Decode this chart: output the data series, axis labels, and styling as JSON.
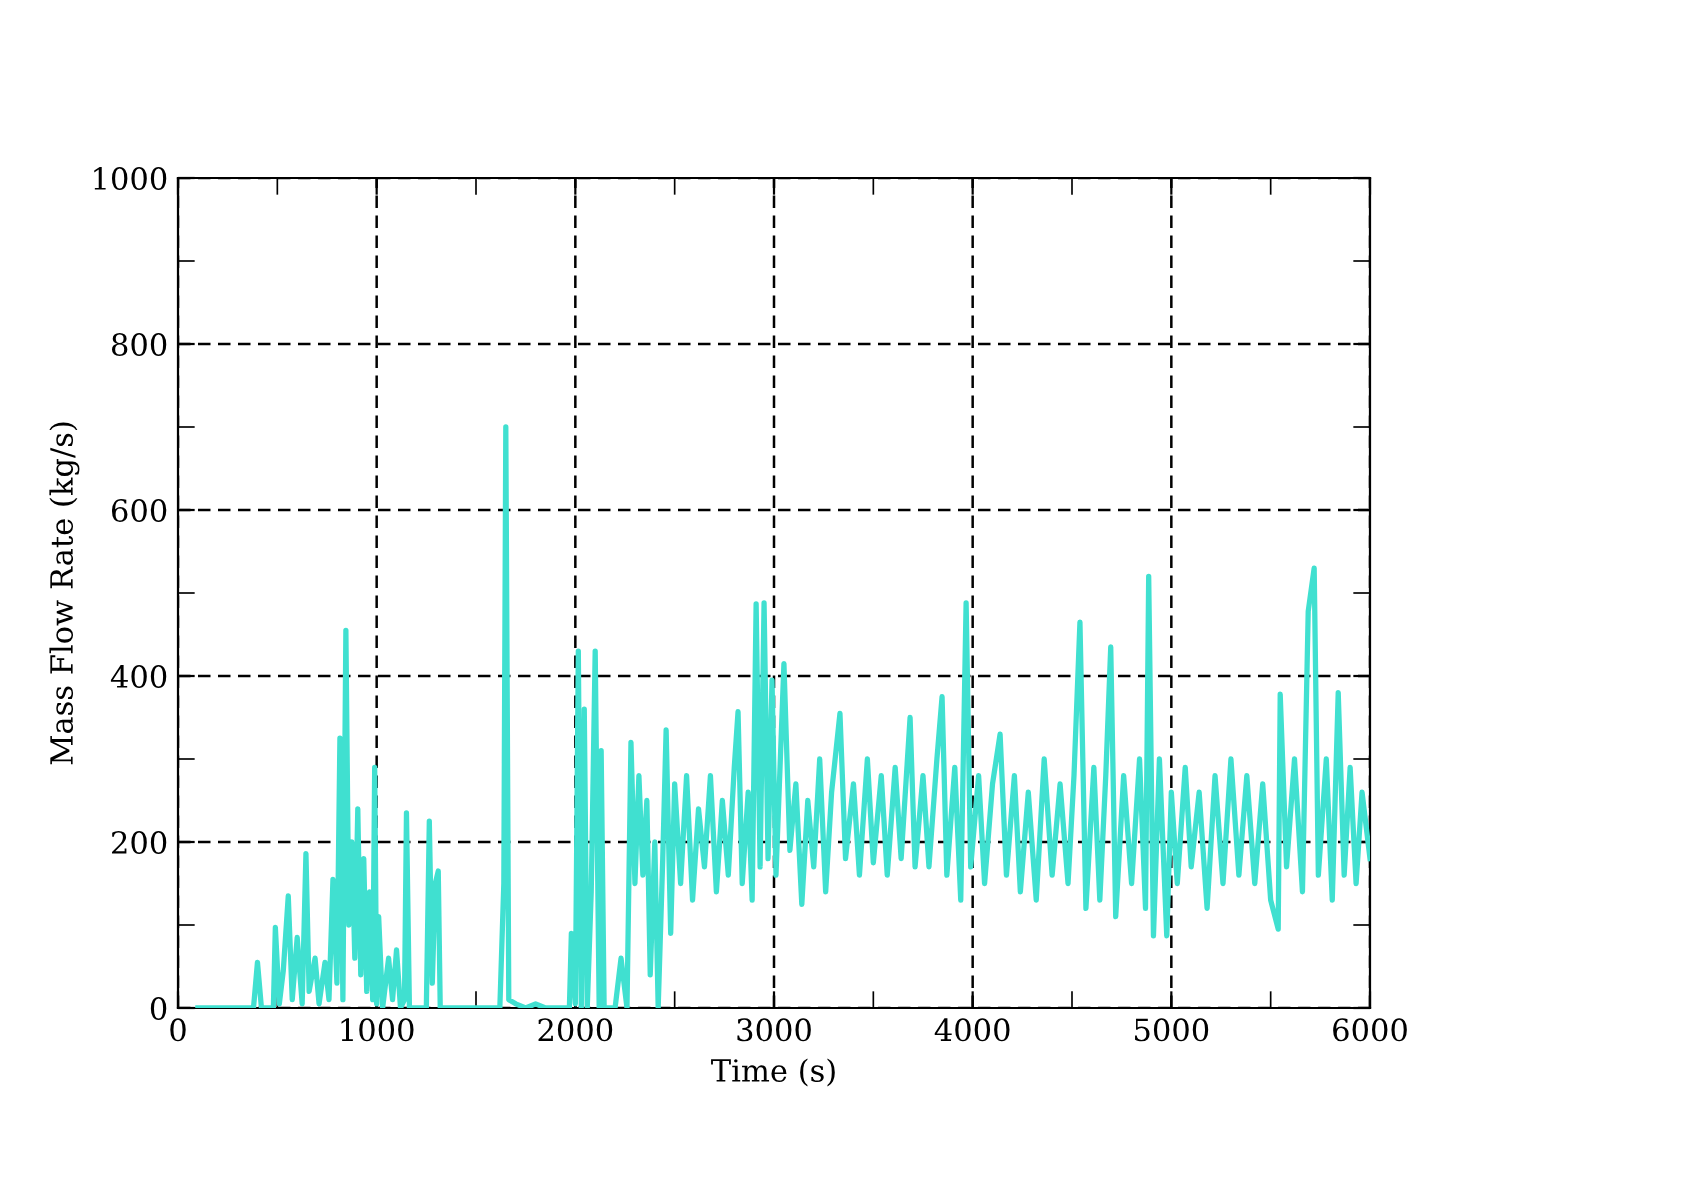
{
  "chart_data": {
    "type": "line",
    "xlabel": "Time (s)",
    "ylabel": "Mass Flow Rate (kg/s)",
    "xlim": [
      0,
      6000
    ],
    "ylim": [
      0,
      1000
    ],
    "xticks": [
      0,
      {
        "value": 500,
        "label": null
      },
      1000,
      {
        "value": 1500,
        "label": null
      },
      2000,
      {
        "value": 2500,
        "label": null
      },
      3000,
      {
        "value": 3500,
        "label": null
      },
      4000,
      {
        "value": 4500,
        "label": null
      },
      5000,
      {
        "value": 5500,
        "label": null
      },
      6000
    ],
    "yticks": [
      0,
      {
        "value": 100,
        "label": null
      },
      200,
      {
        "value": 300,
        "label": null
      },
      400,
      {
        "value": 500,
        "label": null
      },
      600,
      {
        "value": 700,
        "label": null
      },
      800,
      {
        "value": 900,
        "label": null
      },
      1000
    ],
    "grid": true,
    "line_style": "solid",
    "marker": "none",
    "series": [
      {
        "color": "#40e0d0",
        "x": [
          100,
          380,
          400,
          420,
          480,
          490,
          510,
          530,
          555,
          575,
          600,
          625,
          644,
          660,
          690,
          710,
          740,
          760,
          780,
          800,
          815,
          830,
          845,
          860,
          875,
          890,
          905,
          920,
          935,
          950,
          965,
          980,
          990,
          1000,
          1010,
          1030,
          1060,
          1080,
          1100,
          1120,
          1140,
          1150,
          1165,
          1250,
          1265,
          1280,
          1295,
          1310,
          1320,
          1620,
          1640,
          1650,
          1665,
          1700,
          1750,
          1800,
          1850,
          1970,
          1980,
          2000,
          2015,
          2030,
          2045,
          2060,
          2080,
          2100,
          2120,
          2130,
          2145,
          2200,
          2230,
          2260,
          2280,
          2300,
          2320,
          2340,
          2360,
          2377,
          2400,
          2417,
          2440,
          2457,
          2480,
          2500,
          2530,
          2560,
          2590,
          2620,
          2650,
          2680,
          2710,
          2740,
          2770,
          2800,
          2819,
          2840,
          2870,
          2890,
          2910,
          2930,
          2950,
          2970,
          2990,
          3010,
          3050,
          3080,
          3110,
          3140,
          3170,
          3200,
          3230,
          3260,
          3290,
          3332,
          3360,
          3400,
          3430,
          3470,
          3500,
          3540,
          3570,
          3610,
          3640,
          3685,
          3710,
          3750,
          3780,
          3820,
          3846,
          3870,
          3910,
          3940,
          3967,
          3990,
          4030,
          4060,
          4100,
          4138,
          4170,
          4210,
          4240,
          4280,
          4320,
          4360,
          4400,
          4440,
          4480,
          4510,
          4540,
          4570,
          4610,
          4640,
          4670,
          4695,
          4720,
          4760,
          4800,
          4840,
          4870,
          4886,
          4910,
          4940,
          4977,
          5000,
          5030,
          5070,
          5100,
          5140,
          5180,
          5220,
          5260,
          5300,
          5340,
          5380,
          5420,
          5460,
          5500,
          5538,
          5548,
          5580,
          5620,
          5660,
          5689,
          5719,
          5740,
          5780,
          5810,
          5840,
          5870,
          5900,
          5930,
          5960,
          6000
        ],
        "values": [
          0,
          0,
          55,
          0,
          0,
          97,
          5,
          45,
          135,
          10,
          85,
          5,
          186,
          20,
          60,
          5,
          55,
          10,
          155,
          30,
          325,
          10,
          455,
          100,
          200,
          60,
          240,
          40,
          180,
          20,
          140,
          10,
          290,
          5,
          110,
          0,
          60,
          10,
          70,
          0,
          10,
          235,
          0,
          0,
          225,
          30,
          150,
          165,
          0,
          0,
          150,
          700,
          10,
          5,
          0,
          5,
          0,
          0,
          90,
          5,
          430,
          0,
          360,
          0,
          140,
          430,
          0,
          310,
          0,
          0,
          60,
          0,
          320,
          150,
          280,
          160,
          250,
          40,
          200,
          0,
          180,
          335,
          90,
          270,
          150,
          280,
          130,
          240,
          170,
          280,
          140,
          250,
          160,
          290,
          357,
          150,
          260,
          130,
          487,
          170,
          488,
          180,
          395,
          160,
          415,
          190,
          270,
          125,
          250,
          170,
          300,
          140,
          260,
          355,
          180,
          270,
          160,
          300,
          175,
          280,
          160,
          290,
          180,
          350,
          170,
          280,
          170,
          300,
          375,
          160,
          290,
          130,
          488,
          170,
          280,
          150,
          270,
          330,
          160,
          280,
          140,
          260,
          130,
          300,
          160,
          270,
          150,
          280,
          465,
          120,
          290,
          130,
          280,
          435,
          110,
          280,
          150,
          300,
          120,
          520,
          87,
          300,
          87,
          260,
          150,
          290,
          170,
          260,
          120,
          280,
          150,
          300,
          160,
          280,
          150,
          270,
          130,
          95,
          378,
          170,
          300,
          140,
          478,
          530,
          160,
          300,
          130,
          380,
          160,
          290,
          150,
          260,
          180
        ]
      }
    ]
  }
}
